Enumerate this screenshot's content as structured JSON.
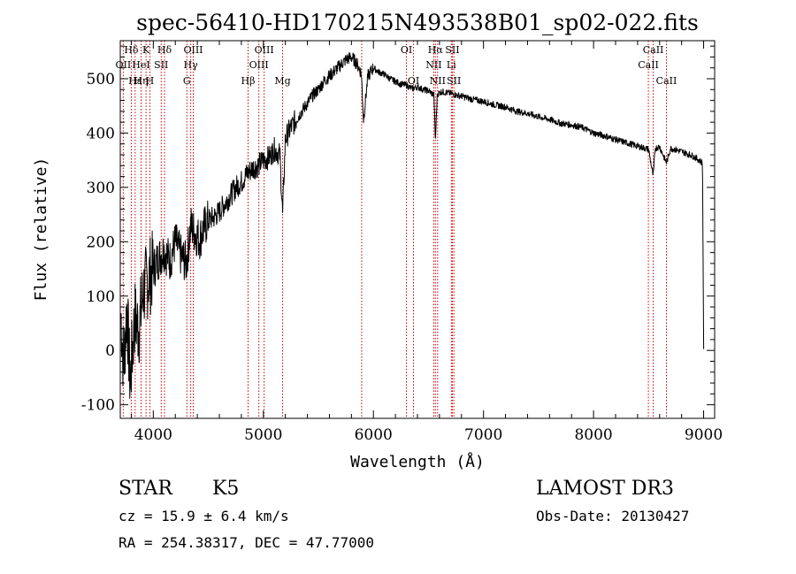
{
  "chart_data": {
    "type": "line",
    "title": "spec-56410-HD170215N493538B01_sp02-022.fits",
    "xlabel": "Wavelength (Å)",
    "ylabel": "Flux (relative)",
    "xlim": [
      3700,
      9100
    ],
    "ylim": [
      -125,
      570
    ],
    "xticks": [
      4000,
      5000,
      6000,
      7000,
      8000,
      9000
    ],
    "xtick_labels": [
      "4000",
      "5000",
      "6000",
      "7000",
      "8000",
      "9000"
    ],
    "yticks": [
      -100,
      0,
      100,
      200,
      300,
      400,
      500
    ],
    "ytick_labels": [
      "-100",
      "0",
      "100",
      "200",
      "300",
      "400",
      "500"
    ],
    "grid": false,
    "series": [
      {
        "name": "spectrum",
        "x": [
          3705,
          3730,
          3760,
          3790,
          3830,
          3870,
          3910,
          3950,
          4000,
          4050,
          4100,
          4150,
          4200,
          4250,
          4300,
          4340,
          4380,
          4420,
          4460,
          4500,
          4550,
          4600,
          4650,
          4700,
          4750,
          4800,
          4850,
          4900,
          4950,
          5000,
          5050,
          5100,
          5150,
          5175,
          5200,
          5250,
          5300,
          5350,
          5400,
          5450,
          5500,
          5550,
          5600,
          5650,
          5700,
          5750,
          5800,
          5850,
          5890,
          5910,
          5950,
          6000,
          6050,
          6100,
          6150,
          6200,
          6250,
          6300,
          6350,
          6400,
          6450,
          6500,
          6550,
          6563,
          6580,
          6620,
          6650,
          6700,
          6750,
          6800,
          6900,
          7000,
          7100,
          7200,
          7300,
          7400,
          7500,
          7600,
          7700,
          7800,
          7900,
          8000,
          8100,
          8200,
          8300,
          8400,
          8500,
          8542,
          8560,
          8600,
          8662,
          8700,
          8800,
          8900,
          8960,
          8990,
          9000
        ],
        "y": [
          70,
          -30,
          80,
          -60,
          60,
          40,
          110,
          130,
          150,
          170,
          185,
          165,
          200,
          175,
          160,
          230,
          215,
          205,
          225,
          240,
          245,
          255,
          270,
          285,
          300,
          310,
          325,
          335,
          340,
          350,
          355,
          370,
          360,
          250,
          390,
          410,
          425,
          440,
          455,
          470,
          480,
          495,
          505,
          515,
          525,
          535,
          540,
          528,
          510,
          425,
          505,
          520,
          512,
          508,
          500,
          495,
          490,
          488,
          482,
          485,
          480,
          478,
          470,
          385,
          472,
          476,
          475,
          473,
          470,
          468,
          462,
          458,
          452,
          448,
          440,
          436,
          430,
          425,
          418,
          415,
          410,
          400,
          395,
          388,
          382,
          376,
          370,
          320,
          372,
          375,
          345,
          372,
          366,
          358,
          350,
          345,
          5
        ]
      }
    ],
    "line_markers": [
      {
        "name": "Hδ",
        "wl": 3800,
        "row": 0
      },
      {
        "name": "OII",
        "wl": 3727,
        "row": 1
      },
      {
        "name": "Hε",
        "wl": 3835,
        "row": 2
      },
      {
        "name": "K",
        "wl": 3934,
        "row": 0
      },
      {
        "name": "Hη",
        "wl": 3889,
        "row": 2
      },
      {
        "name": "HeI",
        "wl": 3889,
        "row": 1
      },
      {
        "name": "H",
        "wl": 3969,
        "row": 2
      },
      {
        "name": "Hδ",
        "wl": 4102,
        "row": 0
      },
      {
        "name": "SII",
        "wl": 4072,
        "row": 1
      },
      {
        "name": "OIII",
        "wl": 4363,
        "row": 0
      },
      {
        "name": "Hγ",
        "wl": 4340,
        "row": 1
      },
      {
        "name": "G",
        "wl": 4305,
        "row": 2
      },
      {
        "name": "Hβ",
        "wl": 4861,
        "row": 2
      },
      {
        "name": "OIII",
        "wl": 5007,
        "row": 0
      },
      {
        "name": "OIII",
        "wl": 4959,
        "row": 1
      },
      {
        "name": "Mg",
        "wl": 5175,
        "row": 2
      },
      {
        "name": "",
        "wl": 5893,
        "row": 3
      },
      {
        "name": "OI",
        "wl": 6300,
        "row": 0
      },
      {
        "name": "OI",
        "wl": 6364,
        "row": 2
      },
      {
        "name": "Hα",
        "wl": 6563,
        "row": 0
      },
      {
        "name": "NII",
        "wl": 6548,
        "row": 1
      },
      {
        "name": "NII",
        "wl": 6583,
        "row": 2
      },
      {
        "name": "SII",
        "wl": 6717,
        "row": 0
      },
      {
        "name": "Li",
        "wl": 6708,
        "row": 1
      },
      {
        "name": "SII",
        "wl": 6731,
        "row": 2
      },
      {
        "name": "CaII",
        "wl": 8542,
        "row": 0
      },
      {
        "name": "CaII",
        "wl": 8498,
        "row": 1
      },
      {
        "name": "CaII",
        "wl": 8662,
        "row": 2
      }
    ]
  },
  "info": {
    "class": "STAR",
    "subclass": "K5",
    "survey": "LAMOST DR3",
    "cz": "cz = 15.9 ± 6.4 km/s",
    "obs_date": "Obs-Date: 20130427",
    "radec": "RA = 254.38317, DEC =  47.77000"
  },
  "colors": {
    "line": "#000000",
    "marker": "#cc0000",
    "background": "#ffffff"
  }
}
